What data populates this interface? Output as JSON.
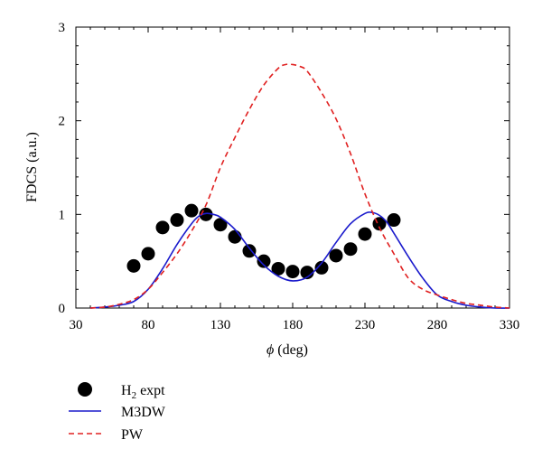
{
  "chart_data": {
    "type": "line",
    "title": "",
    "xlabel": {
      "symbol": "ϕ",
      "unit": "(deg)"
    },
    "ylabel": "FDCS (a.u.)",
    "xlim": [
      30,
      330
    ],
    "ylim": [
      0,
      3
    ],
    "xticks": [
      30,
      80,
      130,
      180,
      230,
      280,
      330
    ],
    "yticks": [
      0,
      1,
      2,
      3
    ],
    "legend_placement": "bottom-left, below plot",
    "series": [
      {
        "name": {
          "base": "H",
          "sub": "2",
          "rest": " expt"
        },
        "kind": "scatter",
        "marker": "filled-circle",
        "color": "#000000",
        "x": [
          70,
          80,
          90,
          100,
          110,
          120,
          130,
          140,
          150,
          160,
          170,
          180,
          190,
          200,
          210,
          220,
          230,
          240,
          250
        ],
        "y": [
          0.45,
          0.58,
          0.86,
          0.94,
          1.04,
          1.0,
          0.89,
          0.76,
          0.61,
          0.5,
          0.42,
          0.39,
          0.38,
          0.43,
          0.56,
          0.63,
          0.79,
          0.9,
          0.94
        ]
      },
      {
        "name": "M3DW",
        "kind": "line",
        "style": "solid",
        "color": "#1a1acc",
        "x": [
          40,
          50,
          60,
          70,
          80,
          90,
          100,
          110,
          115,
          120,
          125,
          130,
          140,
          150,
          160,
          170,
          180,
          190,
          200,
          210,
          220,
          230,
          235,
          240,
          245,
          250,
          260,
          270,
          280,
          290,
          300,
          310,
          320,
          330
        ],
        "y": [
          0.0,
          0.01,
          0.03,
          0.07,
          0.2,
          0.42,
          0.68,
          0.9,
          0.98,
          1.01,
          1.0,
          0.97,
          0.84,
          0.64,
          0.46,
          0.34,
          0.29,
          0.33,
          0.48,
          0.7,
          0.9,
          1.01,
          1.02,
          0.99,
          0.92,
          0.8,
          0.55,
          0.32,
          0.14,
          0.07,
          0.03,
          0.01,
          0.0,
          0.0
        ]
      },
      {
        "name": "PW",
        "kind": "line",
        "style": "dashed",
        "color": "#e02020",
        "x": [
          40,
          50,
          60,
          70,
          80,
          90,
          100,
          110,
          120,
          130,
          140,
          150,
          160,
          170,
          175,
          180,
          185,
          190,
          200,
          210,
          220,
          230,
          240,
          250,
          260,
          270,
          280,
          290,
          300,
          310,
          320,
          330
        ],
        "y": [
          0.0,
          0.01,
          0.04,
          0.09,
          0.2,
          0.38,
          0.58,
          0.82,
          1.1,
          1.5,
          1.82,
          2.12,
          2.38,
          2.56,
          2.6,
          2.6,
          2.58,
          2.53,
          2.3,
          2.02,
          1.65,
          1.22,
          0.86,
          0.58,
          0.32,
          0.2,
          0.14,
          0.09,
          0.05,
          0.03,
          0.01,
          0.0
        ]
      }
    ]
  }
}
